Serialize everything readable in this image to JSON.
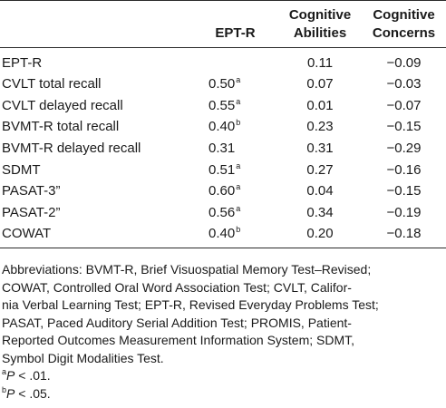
{
  "table": {
    "headers": {
      "label": "",
      "ept": "EPT-R",
      "cog_abilities": [
        "Cognitive",
        "Abilities"
      ],
      "cog_concerns": [
        "Cognitive",
        "Concerns"
      ]
    },
    "rows": [
      {
        "label": "EPT-R",
        "ept": "",
        "ept_mark": "",
        "abilities": "0.11",
        "concerns": "−0.09"
      },
      {
        "label": "CVLT total recall",
        "ept": "0.50",
        "ept_mark": "a",
        "abilities": "0.07",
        "concerns": "−0.03"
      },
      {
        "label": "CVLT delayed recall",
        "ept": "0.55",
        "ept_mark": "a",
        "abilities": "0.01",
        "concerns": "−0.07"
      },
      {
        "label": "BVMT-R total recall",
        "ept": "0.40",
        "ept_mark": "b",
        "abilities": "0.23",
        "concerns": "−0.15"
      },
      {
        "label": "BVMT-R delayed recall",
        "ept": "0.31",
        "ept_mark": "",
        "abilities": "0.31",
        "concerns": "−0.29"
      },
      {
        "label": "SDMT",
        "ept": "0.51",
        "ept_mark": "a",
        "abilities": "0.27",
        "concerns": "−0.16"
      },
      {
        "label": "PASAT-3”",
        "ept": "0.60",
        "ept_mark": "a",
        "abilities": "0.04",
        "concerns": "−0.15"
      },
      {
        "label": "PASAT-2”",
        "ept": "0.56",
        "ept_mark": "a",
        "abilities": "0.34",
        "concerns": "−0.19"
      },
      {
        "label": "COWAT",
        "ept": "0.40",
        "ept_mark": "b",
        "abilities": "0.20",
        "concerns": "−0.18"
      }
    ]
  },
  "footnotes": {
    "abbreviation_lines": [
      "Abbreviations: BVMT-R, Brief Visuospatial Memory Test–Revised;",
      "COWAT, Controlled Oral Word Association Test; CVLT, Califor-",
      "nia Verbal Learning Test; EPT-R, Revised Everyday Problems Test;",
      "PASAT, Paced Auditory Serial Addition Test; PROMIS, Patient-",
      "Reported Outcomes Measurement Information System; SDMT,",
      "Symbol Digit Modalities Test."
    ],
    "note_a": {
      "mark": "a",
      "symbol": "P",
      "text": " < .01."
    },
    "note_b": {
      "mark": "b",
      "symbol": "P",
      "text": " < .05."
    }
  }
}
